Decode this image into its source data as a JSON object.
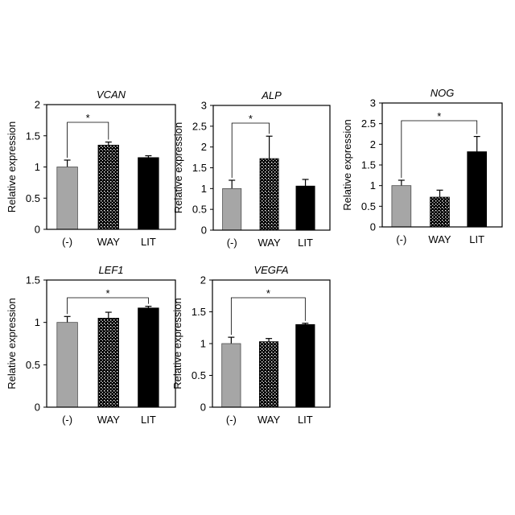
{
  "chart_data": [
    {
      "type": "bar",
      "title": "VCAN",
      "ylabel": "Relative expression",
      "categories": [
        "(-)",
        "WAY",
        "LIT"
      ],
      "values": [
        1.0,
        1.35,
        1.15
      ],
      "errors": [
        0.11,
        0.05,
        0.03
      ],
      "ylim": [
        0,
        2
      ],
      "yticks": [
        "0",
        "0.5",
        "1",
        "1.5",
        "2"
      ],
      "significance": [
        {
          "from": 0,
          "to": 1,
          "label": "*"
        }
      ]
    },
    {
      "type": "bar",
      "title": "ALP",
      "ylabel": "Relative expression",
      "categories": [
        "(-)",
        "WAY",
        "LIT"
      ],
      "values": [
        1.0,
        1.72,
        1.06
      ],
      "errors": [
        0.2,
        0.54,
        0.16
      ],
      "ylim": [
        0,
        3
      ],
      "yticks": [
        "0",
        "0.5",
        "1",
        "1.5",
        "2",
        "2.5",
        "3"
      ],
      "significance": [
        {
          "from": 0,
          "to": 1,
          "label": "*"
        }
      ]
    },
    {
      "type": "bar",
      "title": "NOG",
      "ylabel": "Relative expression",
      "categories": [
        "(-)",
        "WAY",
        "LIT"
      ],
      "values": [
        1.0,
        0.72,
        1.82
      ],
      "errors": [
        0.13,
        0.17,
        0.37
      ],
      "ylim": [
        0,
        3
      ],
      "yticks": [
        "0",
        "0.5",
        "1",
        "1.5",
        "2",
        "2.5",
        "3"
      ],
      "significance": [
        {
          "from": 0,
          "to": 2,
          "label": "*"
        }
      ]
    },
    {
      "type": "bar",
      "title": "LEF1",
      "ylabel": "Relative expression",
      "categories": [
        "(-)",
        "WAY",
        "LIT"
      ],
      "values": [
        1.0,
        1.05,
        1.17
      ],
      "errors": [
        0.07,
        0.07,
        0.02
      ],
      "ylim": [
        0,
        1.5
      ],
      "yticks": [
        "0",
        "0.5",
        "1",
        "1.5"
      ],
      "significance": [
        {
          "from": 0,
          "to": 2,
          "label": "*"
        }
      ]
    },
    {
      "type": "bar",
      "title": "VEGFA",
      "ylabel": "Relative expression",
      "categories": [
        "(-)",
        "WAY",
        "LIT"
      ],
      "values": [
        1.0,
        1.03,
        1.3
      ],
      "errors": [
        0.1,
        0.05,
        0.02
      ],
      "ylim": [
        0,
        2
      ],
      "yticks": [
        "0",
        "0.5",
        "1",
        "1.5",
        "2"
      ],
      "significance": [
        {
          "from": 0,
          "to": 2,
          "label": "*"
        }
      ]
    }
  ],
  "colors": {
    "control": "#a6a6a6",
    "way_background": "#000000",
    "way_dots": "#ffffff",
    "lit": "#000000"
  }
}
